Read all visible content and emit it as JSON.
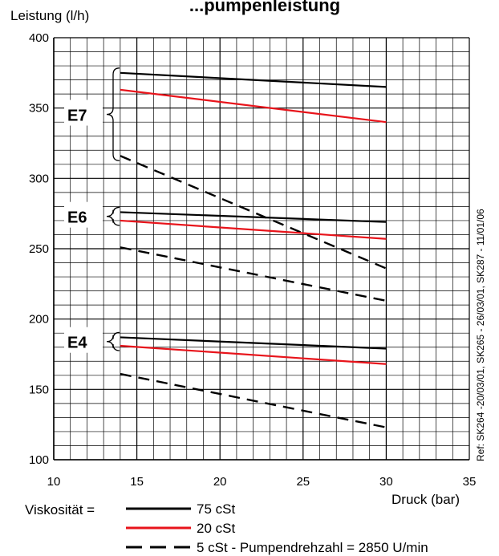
{
  "chart_data": {
    "type": "line",
    "title": "...pumpenleistung",
    "ylabel": "Leistung (l/h)",
    "xlabel": "Druck (bar)",
    "xlim": [
      10,
      35
    ],
    "ylim": [
      100,
      400
    ],
    "xticks": [
      10,
      15,
      20,
      25,
      30,
      35
    ],
    "yticks": [
      100,
      150,
      200,
      250,
      300,
      350,
      400
    ],
    "grid": true,
    "side_note": "Ref: SK264 -20/03/01, SK265 - 26/03/01, SK287 - 11/01/06",
    "groups": [
      {
        "name": "E7",
        "series": [
          {
            "viscosity": "75 cSt",
            "x": [
              14,
              30
            ],
            "y": [
              375,
              365
            ]
          },
          {
            "viscosity": "20 cSt",
            "x": [
              14,
              30
            ],
            "y": [
              363,
              340
            ]
          },
          {
            "viscosity": "5 cSt",
            "x": [
              14,
              30
            ],
            "y": [
              316,
              236
            ]
          }
        ]
      },
      {
        "name": "E6",
        "series": [
          {
            "viscosity": "75 cSt",
            "x": [
              14,
              30
            ],
            "y": [
              276,
              269
            ]
          },
          {
            "viscosity": "20 cSt",
            "x": [
              14,
              30
            ],
            "y": [
              270,
              257
            ]
          },
          {
            "viscosity": "5 cSt",
            "x": [
              14,
              30
            ],
            "y": [
              251,
              213
            ]
          }
        ]
      },
      {
        "name": "E4",
        "series": [
          {
            "viscosity": "75 cSt",
            "x": [
              14,
              30
            ],
            "y": [
              187,
              179
            ]
          },
          {
            "viscosity": "20 cSt",
            "x": [
              14,
              30
            ],
            "y": [
              181,
              168
            ]
          },
          {
            "viscosity": "5 cSt",
            "x": [
              14,
              30
            ],
            "y": [
              161,
              123
            ]
          }
        ]
      }
    ],
    "legend": {
      "prefix": "Viskosität =",
      "placement": "bottom-left",
      "entries": [
        {
          "label": "75 cSt",
          "color": "#000000",
          "style": "solid"
        },
        {
          "label": "20 cSt",
          "color": "#e8141b",
          "style": "solid"
        },
        {
          "label": "5 cSt - Pumpendrehzahl = 2850 U/min",
          "color": "#000000",
          "style": "dashed"
        }
      ]
    },
    "colors": {
      "75 cSt": "#000000",
      "20 cSt": "#e8141b",
      "5 cSt": "#000000"
    }
  }
}
